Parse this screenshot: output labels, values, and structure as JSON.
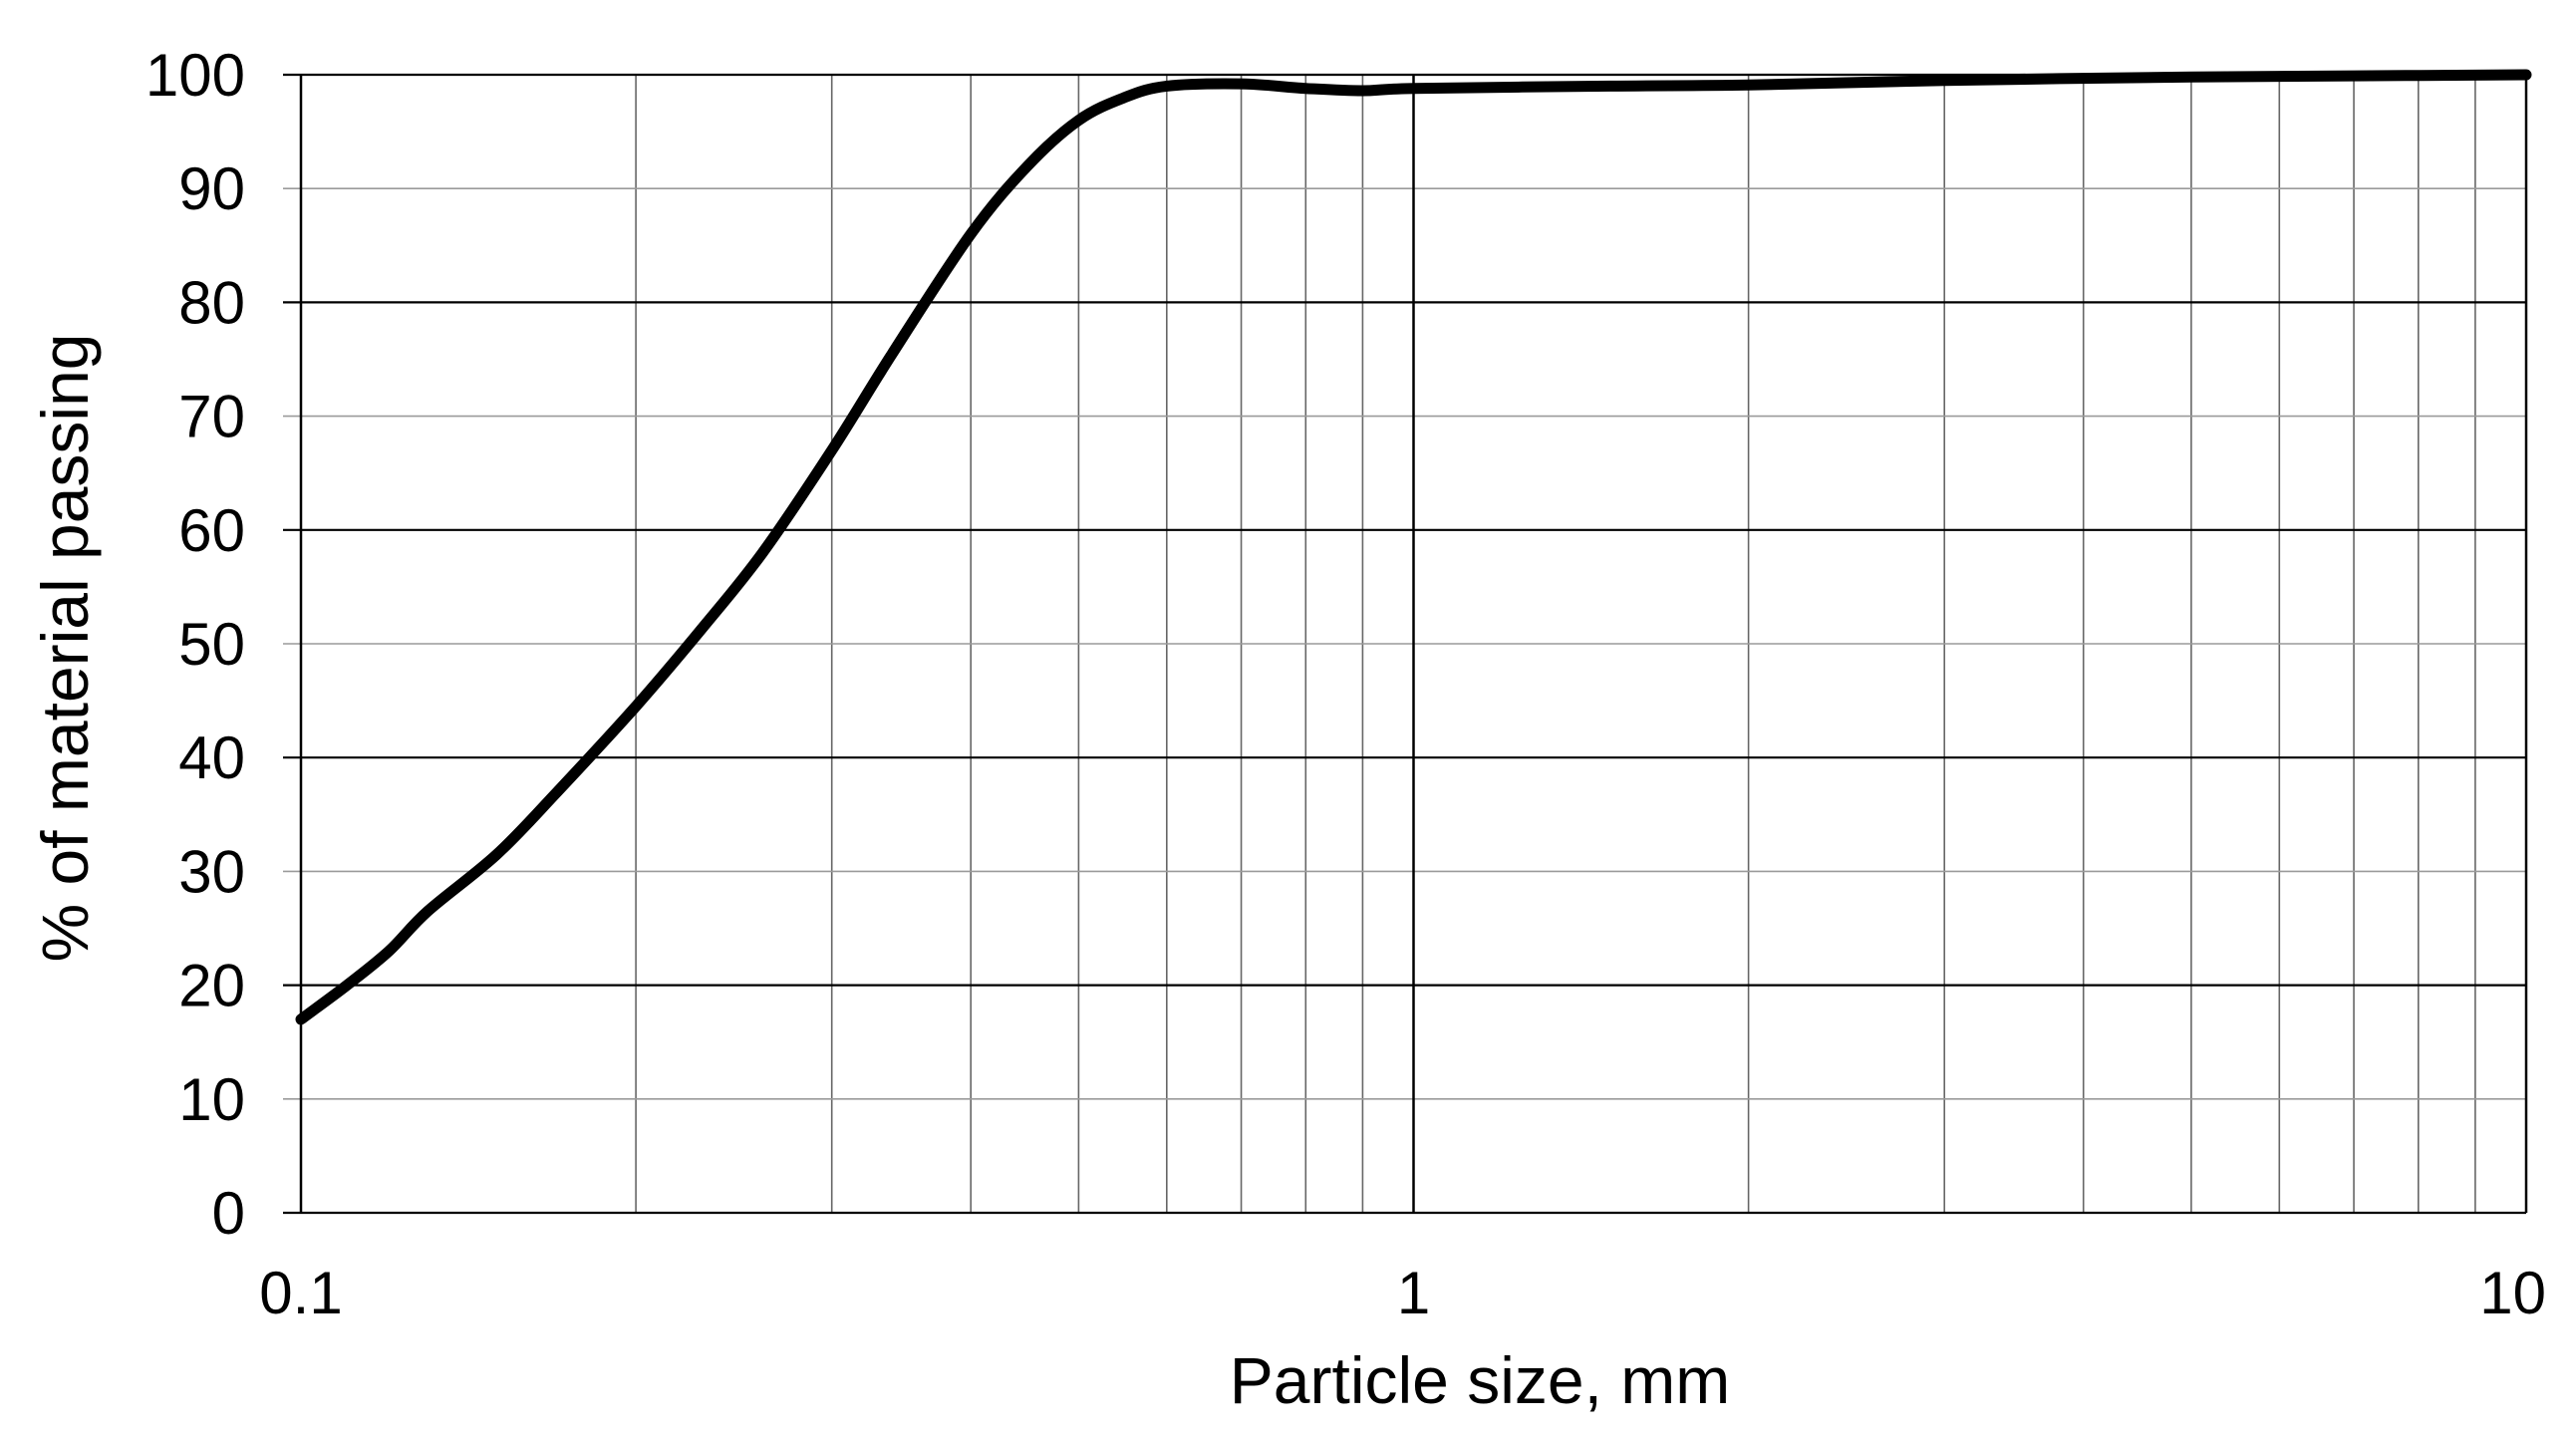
{
  "chart_data": {
    "type": "line",
    "title": "",
    "xlabel": "Particle size, mm",
    "ylabel": "% of material passing",
    "x_scale": "log",
    "xlim": [
      0.1,
      10
    ],
    "ylim": [
      0,
      100
    ],
    "x_tick_labels": [
      "0.1",
      "1",
      "10"
    ],
    "y_tick_labels": [
      "0",
      "10",
      "20",
      "30",
      "40",
      "50",
      "60",
      "70",
      "80",
      "90",
      "100"
    ],
    "grid": true,
    "legend": "none",
    "series": [
      {
        "color": "#000000",
        "x": [
          0.1,
          0.11,
          0.12,
          0.13,
          0.15,
          0.17,
          0.2,
          0.23,
          0.26,
          0.3,
          0.34,
          0.4,
          0.45,
          0.5,
          0.55,
          0.6,
          0.7,
          0.8,
          0.9,
          1.0,
          1.5,
          2,
          3,
          5,
          7,
          10
        ],
        "y": [
          17,
          20,
          23,
          26.5,
          31.5,
          37,
          44.5,
          51.5,
          58,
          67,
          75.5,
          86,
          92,
          96,
          98,
          99,
          99.2,
          98.8,
          98.6,
          98.8,
          99,
          99.1,
          99.5,
          99.8,
          99.9,
          100
        ]
      }
    ]
  }
}
